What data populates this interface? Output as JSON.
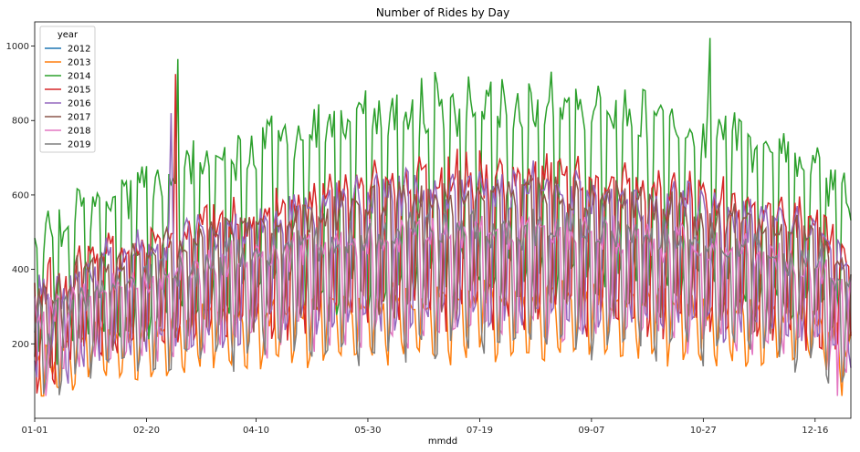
{
  "chart_data": {
    "type": "line",
    "title": "Number of Rides by Day",
    "xlabel": "mmdd",
    "ylabel": "",
    "x_tick_labels": [
      "01-01",
      "02-20",
      "04-10",
      "05-30",
      "07-19",
      "09-07",
      "10-27",
      "12-16"
    ],
    "x_ticks_day_of_year": [
      1,
      51,
      100,
      150,
      200,
      250,
      300,
      350
    ],
    "x_range_day_of_year": [
      1,
      366
    ],
    "y_ticks": [
      200,
      400,
      600,
      800,
      1000
    ],
    "ylim": [
      0,
      1065
    ],
    "grid": false,
    "legend": {
      "title": "year",
      "placement": "top-left"
    },
    "series": [
      {
        "name": "2012",
        "color": "#1f77b4",
        "values": []
      },
      {
        "name": "2013",
        "color": "#ff7f0e",
        "base": 235,
        "amp": 80,
        "peaks": [],
        "note_values": "weekly oscillation ~150-380"
      },
      {
        "name": "2014",
        "color": "#2ca02c",
        "base": 560,
        "amp": 250,
        "peaks": [
          [
            65,
            965
          ],
          [
            303,
            1022
          ]
        ]
      },
      {
        "name": "2015",
        "color": "#d62728",
        "base": 430,
        "amp": 190,
        "peaks": [
          [
            64,
            925
          ]
        ]
      },
      {
        "name": "2016",
        "color": "#9467bd",
        "base": 410,
        "amp": 180,
        "peaks": [
          [
            62,
            820
          ]
        ]
      },
      {
        "name": "2017",
        "color": "#8c564b",
        "base": 420,
        "amp": 150,
        "peaks": []
      },
      {
        "name": "2018",
        "color": "#e377c2",
        "base": 340,
        "amp": 140,
        "peaks": [],
        "min": [
          360,
          60
        ]
      },
      {
        "name": "2019",
        "color": "#7f7f7f",
        "base": 330,
        "amp": 160,
        "peaks": []
      }
    ]
  }
}
